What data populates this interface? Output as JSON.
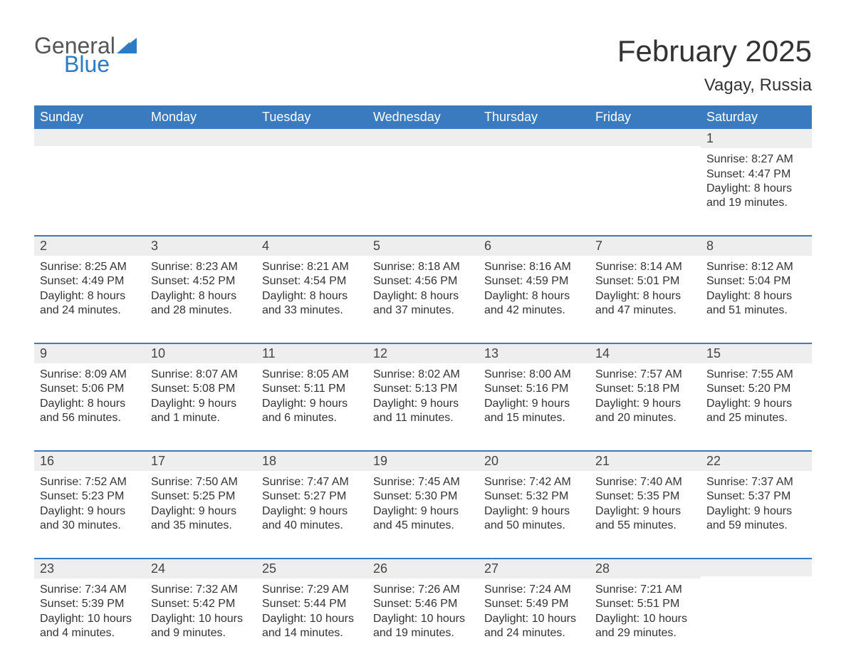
{
  "colors": {
    "header_bg": "#3a7bbf",
    "header_text": "#ffffff",
    "daynum_bg": "#eeeeee",
    "logo_blue": "#2b7cc4",
    "text": "#333333",
    "week_border": "#3a7bbf"
  },
  "logo": {
    "word1": "General",
    "word2": "Blue"
  },
  "title": "February 2025",
  "location": "Vagay, Russia",
  "weekdays": [
    "Sunday",
    "Monday",
    "Tuesday",
    "Wednesday",
    "Thursday",
    "Friday",
    "Saturday"
  ],
  "weeks": [
    [
      {
        "day": "",
        "sunrise": "",
        "sunset": "",
        "daylight": ""
      },
      {
        "day": "",
        "sunrise": "",
        "sunset": "",
        "daylight": ""
      },
      {
        "day": "",
        "sunrise": "",
        "sunset": "",
        "daylight": ""
      },
      {
        "day": "",
        "sunrise": "",
        "sunset": "",
        "daylight": ""
      },
      {
        "day": "",
        "sunrise": "",
        "sunset": "",
        "daylight": ""
      },
      {
        "day": "",
        "sunrise": "",
        "sunset": "",
        "daylight": ""
      },
      {
        "day": "1",
        "sunrise": "Sunrise: 8:27 AM",
        "sunset": "Sunset: 4:47 PM",
        "daylight": "Daylight: 8 hours and 19 minutes."
      }
    ],
    [
      {
        "day": "2",
        "sunrise": "Sunrise: 8:25 AM",
        "sunset": "Sunset: 4:49 PM",
        "daylight": "Daylight: 8 hours and 24 minutes."
      },
      {
        "day": "3",
        "sunrise": "Sunrise: 8:23 AM",
        "sunset": "Sunset: 4:52 PM",
        "daylight": "Daylight: 8 hours and 28 minutes."
      },
      {
        "day": "4",
        "sunrise": "Sunrise: 8:21 AM",
        "sunset": "Sunset: 4:54 PM",
        "daylight": "Daylight: 8 hours and 33 minutes."
      },
      {
        "day": "5",
        "sunrise": "Sunrise: 8:18 AM",
        "sunset": "Sunset: 4:56 PM",
        "daylight": "Daylight: 8 hours and 37 minutes."
      },
      {
        "day": "6",
        "sunrise": "Sunrise: 8:16 AM",
        "sunset": "Sunset: 4:59 PM",
        "daylight": "Daylight: 8 hours and 42 minutes."
      },
      {
        "day": "7",
        "sunrise": "Sunrise: 8:14 AM",
        "sunset": "Sunset: 5:01 PM",
        "daylight": "Daylight: 8 hours and 47 minutes."
      },
      {
        "day": "8",
        "sunrise": "Sunrise: 8:12 AM",
        "sunset": "Sunset: 5:04 PM",
        "daylight": "Daylight: 8 hours and 51 minutes."
      }
    ],
    [
      {
        "day": "9",
        "sunrise": "Sunrise: 8:09 AM",
        "sunset": "Sunset: 5:06 PM",
        "daylight": "Daylight: 8 hours and 56 minutes."
      },
      {
        "day": "10",
        "sunrise": "Sunrise: 8:07 AM",
        "sunset": "Sunset: 5:08 PM",
        "daylight": "Daylight: 9 hours and 1 minute."
      },
      {
        "day": "11",
        "sunrise": "Sunrise: 8:05 AM",
        "sunset": "Sunset: 5:11 PM",
        "daylight": "Daylight: 9 hours and 6 minutes."
      },
      {
        "day": "12",
        "sunrise": "Sunrise: 8:02 AM",
        "sunset": "Sunset: 5:13 PM",
        "daylight": "Daylight: 9 hours and 11 minutes."
      },
      {
        "day": "13",
        "sunrise": "Sunrise: 8:00 AM",
        "sunset": "Sunset: 5:16 PM",
        "daylight": "Daylight: 9 hours and 15 minutes."
      },
      {
        "day": "14",
        "sunrise": "Sunrise: 7:57 AM",
        "sunset": "Sunset: 5:18 PM",
        "daylight": "Daylight: 9 hours and 20 minutes."
      },
      {
        "day": "15",
        "sunrise": "Sunrise: 7:55 AM",
        "sunset": "Sunset: 5:20 PM",
        "daylight": "Daylight: 9 hours and 25 minutes."
      }
    ],
    [
      {
        "day": "16",
        "sunrise": "Sunrise: 7:52 AM",
        "sunset": "Sunset: 5:23 PM",
        "daylight": "Daylight: 9 hours and 30 minutes."
      },
      {
        "day": "17",
        "sunrise": "Sunrise: 7:50 AM",
        "sunset": "Sunset: 5:25 PM",
        "daylight": "Daylight: 9 hours and 35 minutes."
      },
      {
        "day": "18",
        "sunrise": "Sunrise: 7:47 AM",
        "sunset": "Sunset: 5:27 PM",
        "daylight": "Daylight: 9 hours and 40 minutes."
      },
      {
        "day": "19",
        "sunrise": "Sunrise: 7:45 AM",
        "sunset": "Sunset: 5:30 PM",
        "daylight": "Daylight: 9 hours and 45 minutes."
      },
      {
        "day": "20",
        "sunrise": "Sunrise: 7:42 AM",
        "sunset": "Sunset: 5:32 PM",
        "daylight": "Daylight: 9 hours and 50 minutes."
      },
      {
        "day": "21",
        "sunrise": "Sunrise: 7:40 AM",
        "sunset": "Sunset: 5:35 PM",
        "daylight": "Daylight: 9 hours and 55 minutes."
      },
      {
        "day": "22",
        "sunrise": "Sunrise: 7:37 AM",
        "sunset": "Sunset: 5:37 PM",
        "daylight": "Daylight: 9 hours and 59 minutes."
      }
    ],
    [
      {
        "day": "23",
        "sunrise": "Sunrise: 7:34 AM",
        "sunset": "Sunset: 5:39 PM",
        "daylight": "Daylight: 10 hours and 4 minutes."
      },
      {
        "day": "24",
        "sunrise": "Sunrise: 7:32 AM",
        "sunset": "Sunset: 5:42 PM",
        "daylight": "Daylight: 10 hours and 9 minutes."
      },
      {
        "day": "25",
        "sunrise": "Sunrise: 7:29 AM",
        "sunset": "Sunset: 5:44 PM",
        "daylight": "Daylight: 10 hours and 14 minutes."
      },
      {
        "day": "26",
        "sunrise": "Sunrise: 7:26 AM",
        "sunset": "Sunset: 5:46 PM",
        "daylight": "Daylight: 10 hours and 19 minutes."
      },
      {
        "day": "27",
        "sunrise": "Sunrise: 7:24 AM",
        "sunset": "Sunset: 5:49 PM",
        "daylight": "Daylight: 10 hours and 24 minutes."
      },
      {
        "day": "28",
        "sunrise": "Sunrise: 7:21 AM",
        "sunset": "Sunset: 5:51 PM",
        "daylight": "Daylight: 10 hours and 29 minutes."
      },
      {
        "day": "",
        "sunrise": "",
        "sunset": "",
        "daylight": ""
      }
    ]
  ]
}
